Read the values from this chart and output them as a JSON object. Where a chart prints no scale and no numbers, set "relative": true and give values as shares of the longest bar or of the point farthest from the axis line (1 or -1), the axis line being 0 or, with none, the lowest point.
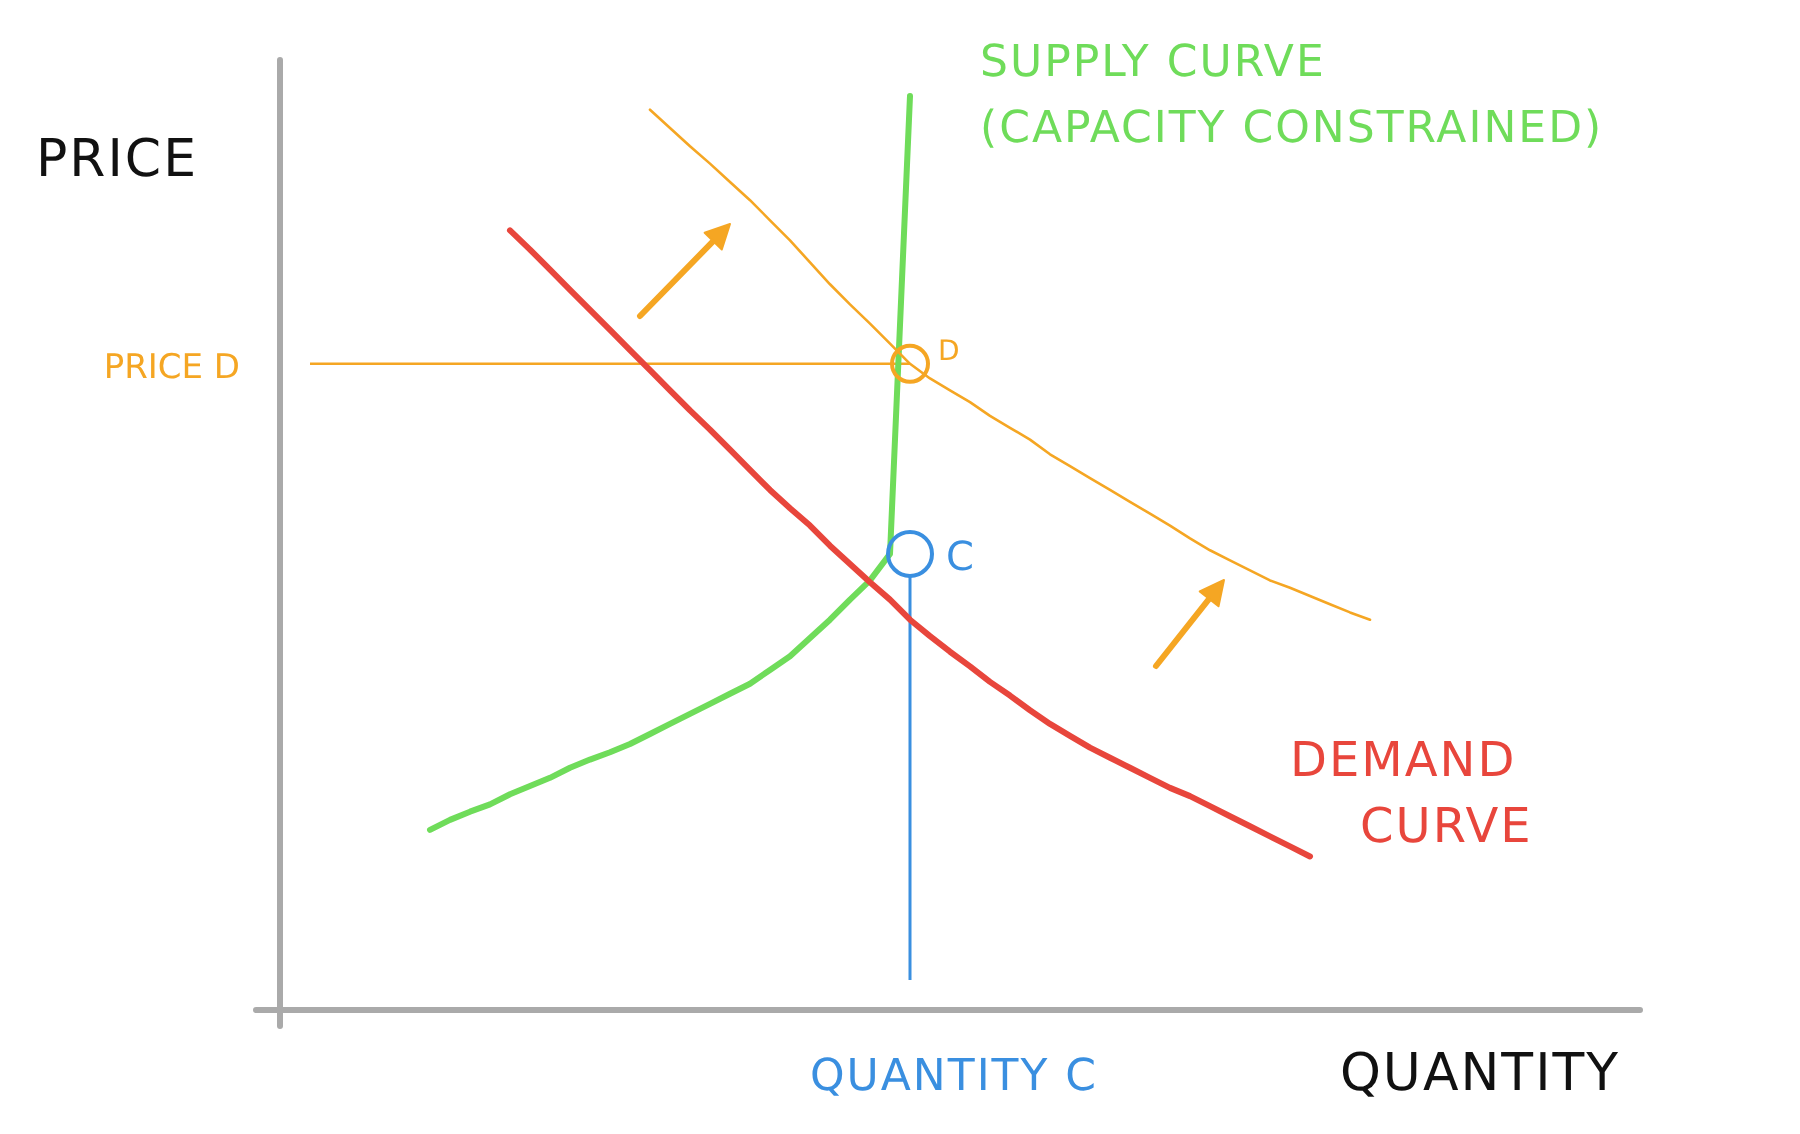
{
  "chart_data": {
    "type": "line",
    "relative": true,
    "xlabel": "QUANTITY",
    "ylabel": "PRICE",
    "categories": [
      null,
      null,
      null,
      null,
      null,
      null,
      null,
      null,
      null,
      null,
      null,
      null,
      null,
      null,
      null,
      null,
      null,
      null,
      null,
      null,
      null,
      null,
      null,
      null,
      null,
      null,
      null,
      null,
      null,
      null,
      null,
      null,
      null,
      null,
      null,
      null,
      null,
      null,
      null,
      null,
      null,
      null,
      null,
      null,
      null,
      null,
      null,
      null,
      null,
      null,
      null,
      null,
      null,
      null,
      null,
      null,
      null,
      null,
      null,
      null,
      null,
      null,
      null,
      null,
      null,
      null,
      null,
      null
    ],
    "series": [
      {
        "name": "SUPPLY CURVE (CAPACITY CONSTRAINED)",
        "color": "#6fdc5a",
        "values": [
          null,
          null,
          null,
          null,
          null,
          null,
          null,
          0.197,
          0.208,
          0.217,
          0.225,
          0.236,
          0.245,
          0.254,
          0.265,
          0.274,
          0.282,
          0.291,
          0.302,
          0.313,
          0.324,
          0.335,
          0.346,
          0.357,
          0.372,
          0.387,
          0.407,
          0.427,
          0.449,
          0.47,
          0.499,
          1.0,
          null,
          null,
          null,
          null,
          null,
          null,
          null,
          null,
          null,
          null,
          null,
          null,
          null,
          null,
          null,
          null,
          null,
          null,
          null,
          null,
          null,
          null,
          null,
          null,
          null,
          null,
          null,
          null,
          null,
          null,
          null,
          null,
          null,
          null,
          null,
          null
        ]
      },
      {
        "name": "DEMAND CURVE",
        "color": "#e8463c",
        "values": [
          null,
          null,
          null,
          null,
          null,
          null,
          null,
          null,
          null,
          null,
          null,
          0.853,
          0.832,
          0.81,
          0.788,
          0.766,
          0.744,
          0.722,
          0.7,
          0.678,
          0.656,
          0.635,
          0.613,
          0.591,
          0.569,
          0.549,
          0.53,
          0.508,
          0.488,
          0.468,
          0.449,
          0.427,
          0.409,
          0.392,
          0.376,
          0.359,
          0.344,
          0.328,
          0.313,
          0.3,
          0.287,
          0.276,
          0.265,
          0.254,
          0.243,
          0.234,
          0.223,
          0.212,
          0.201,
          0.19,
          0.179,
          0.168,
          null,
          null,
          null,
          null,
          null,
          null,
          null,
          null,
          null,
          null,
          null,
          null,
          null,
          null,
          null,
          null
        ]
      },
      {
        "color": "#f5a623",
        "values": [
          null,
          null,
          null,
          null,
          null,
          null,
          null,
          null,
          null,
          null,
          null,
          null,
          null,
          null,
          null,
          null,
          null,
          null,
          0.985,
          0.965,
          0.945,
          0.926,
          0.906,
          0.886,
          0.864,
          0.842,
          0.818,
          0.794,
          0.772,
          0.751,
          0.729,
          0.707,
          0.691,
          0.678,
          0.665,
          0.65,
          0.637,
          0.624,
          0.608,
          0.595,
          0.582,
          0.569,
          0.556,
          0.543,
          0.53,
          0.516,
          0.503,
          0.492,
          0.481,
          0.47,
          0.462,
          0.453,
          0.444,
          0.435,
          0.427,
          null,
          null,
          null,
          null,
          null,
          null,
          null,
          null,
          null,
          null,
          null,
          null,
          null
        ]
      }
    ],
    "ref_lines": [
      {
        "axis": "y",
        "value": 0.707,
        "label": "PRICE D",
        "color": "#f5a623"
      }
    ],
    "annotations": [
      "QUANTITY C",
      "C",
      "D"
    ],
    "line_style": "solid",
    "marker": "none"
  }
}
